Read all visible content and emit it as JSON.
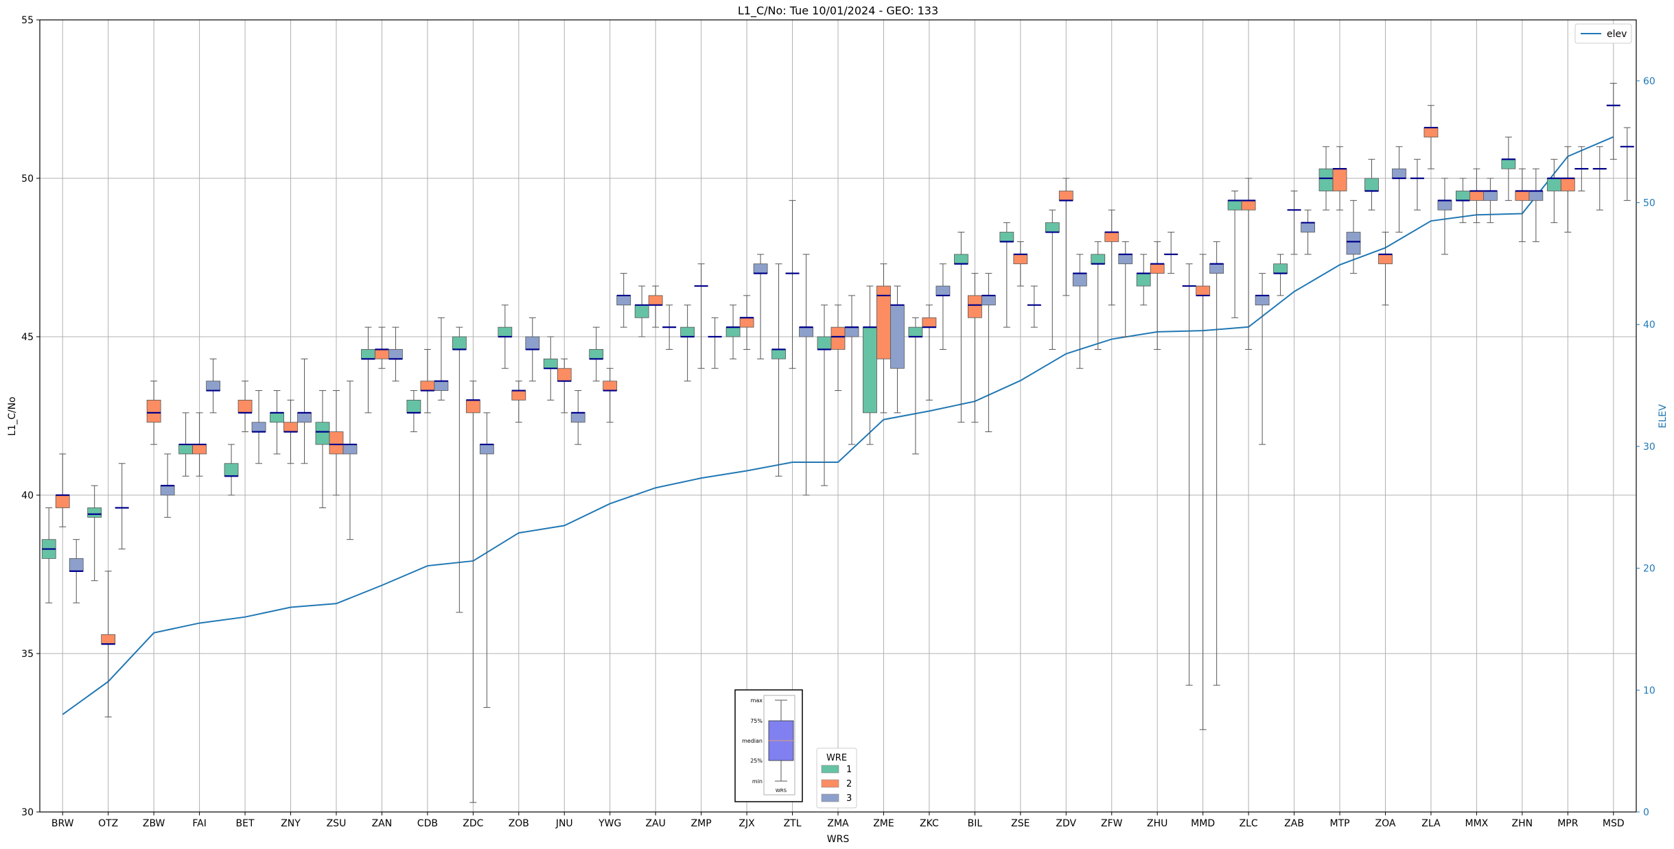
{
  "chart_data": {
    "type": "box",
    "title": "L1_C/No: Tue 10/01/2024 - GEO: 133",
    "xlabel": "WRS",
    "ylabel": "L1_C/No",
    "y2label": "ELEV",
    "ylim": [
      30,
      55
    ],
    "y2lim": [
      0,
      65
    ],
    "yticks": [
      "30",
      "35",
      "40",
      "45",
      "50",
      "55"
    ],
    "y2ticks": [
      "0",
      "10",
      "20",
      "30",
      "40",
      "50",
      "60"
    ],
    "grid": true,
    "colors": {
      "1": "#66c2a5",
      "2": "#fc8d62",
      "3": "#8da0cb",
      "median": "#00008b",
      "elev": "#1f77b4",
      "whisker": "#555555"
    },
    "categories": [
      "BRW",
      "OTZ",
      "ZBW",
      "FAI",
      "BET",
      "ZNY",
      "ZSU",
      "ZAN",
      "CDB",
      "ZDC",
      "ZOB",
      "JNU",
      "YWG",
      "ZAU",
      "ZMP",
      "ZJX",
      "ZTL",
      "ZMA",
      "ZME",
      "ZKC",
      "BIL",
      "ZSE",
      "ZDV",
      "ZFW",
      "ZHU",
      "MMD",
      "ZLC",
      "ZAB",
      "MTP",
      "ZOA",
      "ZLA",
      "MMX",
      "ZHN",
      "MPR",
      "MSD"
    ],
    "elev_series": {
      "name": "elev",
      "values": [
        8.0,
        10.7,
        14.7,
        15.5,
        16.0,
        16.8,
        17.1,
        18.6,
        20.2,
        20.6,
        22.9,
        23.5,
        25.3,
        26.6,
        27.4,
        28.0,
        28.7,
        28.7,
        32.2,
        32.9,
        33.7,
        35.4,
        37.6,
        38.8,
        39.4,
        39.5,
        39.8,
        42.7,
        44.9,
        46.3,
        48.5,
        49.0,
        49.1,
        53.8,
        55.4
      ]
    },
    "series": [
      {
        "name": "1",
        "offset": -1,
        "boxes": [
          [
            36.6,
            38.0,
            38.3,
            38.6,
            39.6
          ],
          [
            37.3,
            39.3,
            39.4,
            39.6,
            40.3
          ],
          null,
          [
            40.6,
            41.3,
            41.6,
            41.6,
            42.6
          ],
          [
            40.0,
            40.6,
            40.6,
            41.0,
            41.6
          ],
          [
            41.3,
            42.3,
            42.6,
            42.6,
            43.3
          ],
          [
            39.6,
            41.6,
            42.0,
            42.3,
            43.3
          ],
          [
            42.6,
            44.3,
            44.3,
            44.6,
            45.3
          ],
          [
            42.0,
            42.6,
            42.6,
            43.0,
            43.3
          ],
          [
            36.3,
            44.6,
            44.6,
            45.0,
            45.3
          ],
          [
            44.0,
            45.0,
            45.0,
            45.3,
            46.0
          ],
          [
            43.0,
            44.0,
            44.0,
            44.3,
            45.0
          ],
          [
            43.6,
            44.3,
            44.3,
            44.6,
            45.3
          ],
          [
            45.0,
            45.6,
            46.0,
            46.0,
            46.6
          ],
          [
            43.6,
            45.0,
            45.0,
            45.3,
            46.0
          ],
          [
            44.3,
            45.0,
            45.3,
            45.3,
            46.0
          ],
          [
            40.6,
            44.3,
            44.6,
            44.6,
            47.3
          ],
          [
            40.3,
            44.6,
            44.6,
            45.0,
            46.0
          ],
          [
            41.6,
            42.6,
            45.3,
            45.3,
            46.6
          ],
          [
            41.3,
            45.0,
            45.0,
            45.3,
            45.6
          ],
          [
            42.3,
            47.3,
            47.3,
            47.6,
            48.3
          ],
          [
            45.3,
            48.0,
            48.0,
            48.3,
            48.6
          ],
          [
            44.6,
            48.3,
            48.3,
            48.6,
            49.0
          ],
          [
            44.6,
            47.3,
            47.3,
            47.6,
            48.0
          ],
          [
            46.0,
            46.6,
            47.0,
            47.0,
            47.6
          ],
          [
            34.0,
            46.6,
            46.6,
            46.6,
            47.3
          ],
          [
            45.6,
            49.0,
            49.3,
            49.3,
            49.6
          ],
          [
            46.3,
            47.0,
            47.0,
            47.3,
            47.6
          ],
          [
            49.0,
            49.6,
            50.0,
            50.3,
            51.0
          ],
          [
            49.0,
            49.6,
            49.6,
            50.0,
            50.6
          ],
          [
            49.0,
            50.0,
            50.0,
            50.0,
            50.6
          ],
          [
            48.6,
            49.3,
            49.3,
            49.6,
            50.0
          ],
          [
            49.3,
            50.3,
            50.6,
            50.6,
            51.3
          ],
          [
            48.6,
            49.6,
            50.0,
            50.0,
            50.6
          ],
          [
            49.0,
            50.3,
            50.3,
            50.3,
            51.0
          ]
        ]
      },
      {
        "name": "2",
        "offset": 0,
        "boxes": [
          [
            39.0,
            39.6,
            40.0,
            40.0,
            41.3
          ],
          [
            33.0,
            35.3,
            35.3,
            35.6,
            37.6
          ],
          [
            41.6,
            42.3,
            42.6,
            43.0,
            43.6
          ],
          [
            40.6,
            41.3,
            41.6,
            41.6,
            42.6
          ],
          [
            42.0,
            42.6,
            42.6,
            43.0,
            43.6
          ],
          [
            41.0,
            42.0,
            42.0,
            42.3,
            43.0
          ],
          [
            40.0,
            41.3,
            41.6,
            42.0,
            43.3
          ],
          [
            44.0,
            44.3,
            44.6,
            44.6,
            45.3
          ],
          [
            42.6,
            43.3,
            43.3,
            43.6,
            44.6
          ],
          [
            30.3,
            42.6,
            43.0,
            43.0,
            43.6
          ],
          [
            42.3,
            43.0,
            43.3,
            43.3,
            43.6
          ],
          [
            42.6,
            43.6,
            43.6,
            44.0,
            44.3
          ],
          [
            42.3,
            43.3,
            43.3,
            43.6,
            44.0
          ],
          [
            45.3,
            46.0,
            46.0,
            46.3,
            46.6
          ],
          [
            44.0,
            46.6,
            46.6,
            46.6,
            47.3
          ],
          [
            44.6,
            45.3,
            45.6,
            45.6,
            46.3
          ],
          [
            44.0,
            47.0,
            47.0,
            47.0,
            49.3
          ],
          [
            43.3,
            44.6,
            45.0,
            45.3,
            46.0
          ],
          [
            42.6,
            44.3,
            46.3,
            46.6,
            47.3
          ],
          [
            43.0,
            45.3,
            45.3,
            45.6,
            46.0
          ],
          [
            42.3,
            45.6,
            46.0,
            46.3,
            47.0
          ],
          [
            46.6,
            47.3,
            47.6,
            47.6,
            48.0
          ],
          [
            46.3,
            49.3,
            49.3,
            49.6,
            50.0
          ],
          [
            46.0,
            48.0,
            48.3,
            48.3,
            49.0
          ],
          [
            44.6,
            47.0,
            47.3,
            47.3,
            48.0
          ],
          [
            32.6,
            46.3,
            46.3,
            46.6,
            47.6
          ],
          [
            44.6,
            49.0,
            49.3,
            49.3,
            50.0
          ],
          [
            47.6,
            49.0,
            49.0,
            49.0,
            49.6
          ],
          [
            49.0,
            49.6,
            50.3,
            50.3,
            51.0
          ],
          [
            46.0,
            47.3,
            47.6,
            47.6,
            48.3
          ],
          [
            50.3,
            51.3,
            51.6,
            51.6,
            52.3
          ],
          [
            48.6,
            49.3,
            49.6,
            49.6,
            50.3
          ],
          [
            48.0,
            49.3,
            49.6,
            49.6,
            50.3
          ],
          [
            48.3,
            49.6,
            50.0,
            50.0,
            51.0
          ],
          [
            50.6,
            52.3,
            52.3,
            52.3,
            53.0
          ]
        ]
      },
      {
        "name": "3",
        "offset": 1,
        "boxes": [
          [
            36.6,
            37.6,
            37.6,
            38.0,
            38.6
          ],
          [
            38.3,
            39.6,
            39.6,
            39.6,
            41.0
          ],
          [
            39.3,
            40.0,
            40.3,
            40.3,
            41.3
          ],
          [
            42.6,
            43.3,
            43.3,
            43.6,
            44.3
          ],
          [
            41.0,
            42.0,
            42.0,
            42.3,
            43.3
          ],
          [
            41.0,
            42.3,
            42.6,
            42.6,
            44.3
          ],
          [
            38.6,
            41.3,
            41.6,
            41.6,
            43.6
          ],
          [
            43.6,
            44.3,
            44.3,
            44.6,
            45.3
          ],
          [
            43.0,
            43.3,
            43.6,
            43.6,
            45.6
          ],
          [
            33.3,
            41.3,
            41.6,
            41.6,
            42.6
          ],
          [
            43.6,
            44.6,
            44.6,
            45.0,
            45.6
          ],
          [
            41.6,
            42.3,
            42.6,
            42.6,
            43.3
          ],
          [
            45.3,
            46.0,
            46.3,
            46.3,
            47.0
          ],
          [
            44.6,
            45.3,
            45.3,
            45.3,
            46.0
          ],
          [
            44.0,
            45.0,
            45.0,
            45.0,
            45.6
          ],
          [
            44.3,
            47.0,
            47.0,
            47.3,
            47.6
          ],
          [
            40.0,
            45.0,
            45.3,
            45.3,
            47.6
          ],
          [
            41.6,
            45.0,
            45.3,
            45.3,
            46.3
          ],
          [
            42.6,
            44.0,
            46.0,
            46.0,
            46.6
          ],
          [
            44.6,
            46.3,
            46.3,
            46.6,
            47.3
          ],
          [
            42.0,
            46.0,
            46.3,
            46.3,
            47.0
          ],
          [
            45.3,
            46.0,
            46.0,
            46.0,
            46.6
          ],
          [
            44.0,
            46.6,
            47.0,
            47.0,
            47.6
          ],
          [
            45.0,
            47.3,
            47.6,
            47.6,
            48.0
          ],
          [
            47.0,
            47.6,
            47.6,
            47.6,
            48.3
          ],
          [
            34.0,
            47.0,
            47.3,
            47.3,
            48.0
          ],
          [
            41.6,
            46.0,
            46.3,
            46.3,
            47.0
          ],
          [
            47.6,
            48.3,
            48.6,
            48.6,
            49.0
          ],
          [
            47.0,
            47.6,
            48.0,
            48.3,
            49.3
          ],
          [
            48.3,
            50.0,
            50.0,
            50.3,
            51.0
          ],
          [
            47.6,
            49.0,
            49.3,
            49.3,
            50.0
          ],
          [
            48.6,
            49.3,
            49.6,
            49.6,
            50.0
          ],
          [
            48.0,
            49.3,
            49.6,
            49.6,
            50.3
          ],
          [
            49.6,
            50.3,
            50.3,
            50.3,
            51.0
          ],
          [
            49.3,
            51.0,
            51.0,
            51.0,
            51.6
          ]
        ]
      }
    ],
    "legend_wre": {
      "title": "WRE",
      "items": [
        "1",
        "2",
        "3"
      ],
      "position": "bottom-center"
    },
    "legend_elev": {
      "label": "elev",
      "position": "top-right"
    },
    "inset_key": {
      "labels": [
        "max",
        "75%",
        "median",
        "25%",
        "min"
      ],
      "caption": "WRS"
    }
  }
}
